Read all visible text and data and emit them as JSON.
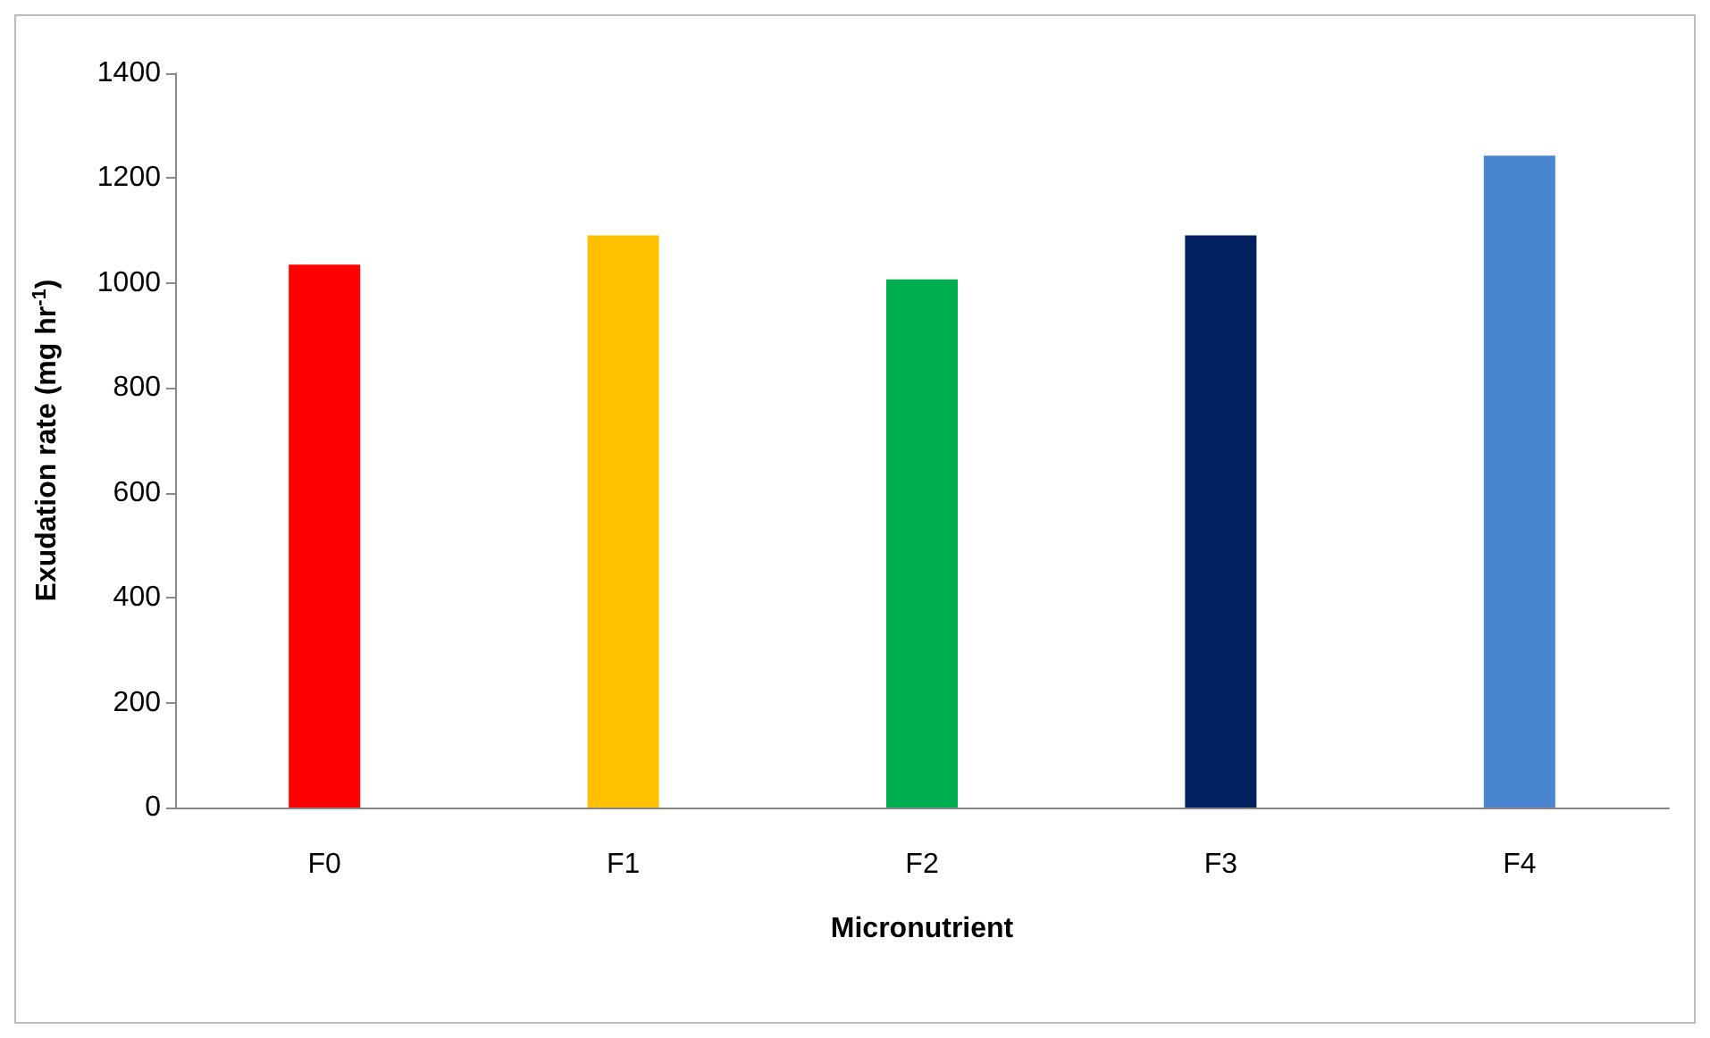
{
  "chart_data": {
    "type": "bar",
    "xlabel": "Micronutrient",
    "ylabel": "Exudation rate (mg hr$^{-1}$)",
    "categories": [
      "F0",
      "F1",
      "F2",
      "F3",
      "F4"
    ],
    "values": [
      1035,
      1091,
      1007,
      1091,
      1243
    ],
    "colors": [
      "#ff0000",
      "#ffc000",
      "#00b050",
      "#002060",
      "#4a86d0"
    ],
    "ylim": [
      0,
      1400
    ],
    "yticks": [
      0,
      200,
      400,
      600,
      800,
      1000,
      1200,
      1400
    ],
    "grid": false
  }
}
